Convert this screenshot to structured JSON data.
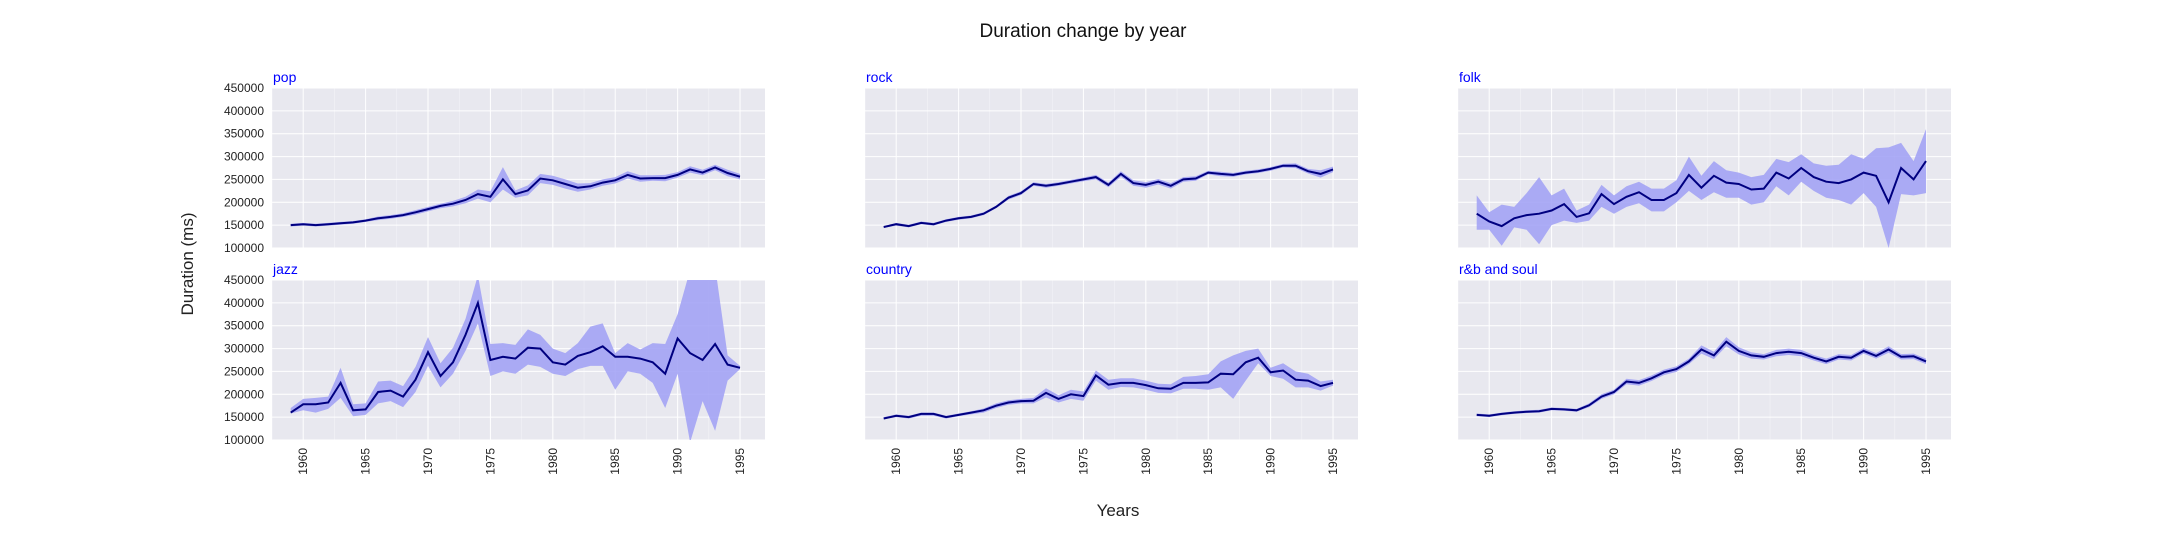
{
  "colors": {
    "background": "#ffffff",
    "panel_bg": "#e8e8ef",
    "grid": "#ffffff",
    "line": "#000080",
    "band": "#9f9ff5",
    "panel_title": "#0000ff",
    "text": "#222222"
  },
  "chart_data": {
    "type": "line",
    "title": "Duration change by year",
    "xlabel": "Years",
    "ylabel": "Duration (ms)",
    "ylim": [
      100000,
      450000
    ],
    "xlim": [
      1957.5,
      1997
    ],
    "yticks": [
      100000,
      150000,
      200000,
      250000,
      300000,
      350000,
      400000,
      450000
    ],
    "xticks": [
      1960,
      1965,
      1970,
      1975,
      1980,
      1985,
      1990,
      1995
    ],
    "grid": true,
    "legend": "none",
    "years": [
      1959,
      1960,
      1961,
      1962,
      1963,
      1964,
      1965,
      1966,
      1967,
      1968,
      1969,
      1970,
      1971,
      1972,
      1973,
      1974,
      1975,
      1976,
      1977,
      1978,
      1979,
      1980,
      1981,
      1982,
      1983,
      1984,
      1985,
      1986,
      1987,
      1988,
      1989,
      1990,
      1991,
      1992,
      1993,
      1994,
      1995
    ],
    "panels": [
      {
        "title": "pop",
        "values": [
          150000,
          152000,
          150000,
          152000,
          154000,
          156000,
          160000,
          165000,
          168000,
          172000,
          178000,
          185000,
          192000,
          197000,
          205000,
          218000,
          212000,
          250000,
          218000,
          226000,
          252000,
          248000,
          240000,
          232000,
          235000,
          243000,
          248000,
          260000,
          252000,
          253000,
          253000,
          260000,
          272000,
          265000,
          276000,
          264000,
          256000
        ],
        "lower": [
          147000,
          149000,
          147000,
          149000,
          151000,
          153000,
          157000,
          161000,
          164000,
          168000,
          173000,
          180000,
          187000,
          191000,
          198000,
          208000,
          200000,
          228000,
          210000,
          215000,
          242000,
          238000,
          230000,
          223000,
          228000,
          236000,
          241000,
          252000,
          245000,
          247000,
          246000,
          254000,
          265000,
          259000,
          270000,
          257000,
          250000
        ],
        "upper": [
          153000,
          155000,
          153000,
          155000,
          157000,
          159000,
          163000,
          169000,
          172000,
          176000,
          183000,
          190000,
          197000,
          203000,
          212000,
          228000,
          224000,
          277000,
          226000,
          237000,
          262000,
          258000,
          250000,
          241000,
          242000,
          250000,
          255000,
          268000,
          259000,
          259000,
          260000,
          266000,
          279000,
          271000,
          282000,
          271000,
          262000
        ]
      },
      {
        "title": "rock",
        "values": [
          146000,
          152000,
          148000,
          155000,
          152000,
          160000,
          165000,
          168000,
          175000,
          190000,
          210000,
          220000,
          240000,
          236000,
          240000,
          245000,
          250000,
          255000,
          238000,
          262000,
          242000,
          238000,
          245000,
          236000,
          250000,
          252000,
          265000,
          262000,
          260000,
          265000,
          268000,
          273000,
          280000,
          280000,
          268000,
          262000,
          272000
        ],
        "lower": [
          144000,
          149000,
          145000,
          152000,
          149000,
          157000,
          162000,
          165000,
          172000,
          187000,
          206000,
          216000,
          236000,
          232000,
          236000,
          241000,
          246000,
          250000,
          233000,
          256000,
          236000,
          232000,
          239000,
          230000,
          245000,
          247000,
          261000,
          257000,
          256000,
          261000,
          264000,
          269000,
          276000,
          275000,
          263000,
          254000,
          266000
        ],
        "upper": [
          148000,
          155000,
          151000,
          158000,
          155000,
          163000,
          168000,
          171000,
          178000,
          193000,
          214000,
          224000,
          244000,
          240000,
          244000,
          249000,
          254000,
          260000,
          243000,
          268000,
          248000,
          244000,
          251000,
          242000,
          255000,
          257000,
          269000,
          267000,
          264000,
          269000,
          272000,
          277000,
          284000,
          285000,
          273000,
          270000,
          278000
        ]
      },
      {
        "title": "folk",
        "values": [
          175000,
          158000,
          148000,
          165000,
          172000,
          175000,
          182000,
          196000,
          168000,
          176000,
          218000,
          196000,
          212000,
          222000,
          205000,
          205000,
          220000,
          260000,
          232000,
          258000,
          243000,
          240000,
          228000,
          230000,
          265000,
          252000,
          275000,
          255000,
          245000,
          242000,
          250000,
          265000,
          258000,
          200000,
          275000,
          250000,
          290000
        ],
        "lower": [
          140000,
          140000,
          105000,
          145000,
          140000,
          108000,
          150000,
          160000,
          155000,
          160000,
          190000,
          175000,
          190000,
          198000,
          180000,
          180000,
          200000,
          225000,
          205000,
          222000,
          210000,
          210000,
          195000,
          200000,
          235000,
          215000,
          245000,
          225000,
          210000,
          205000,
          195000,
          220000,
          190000,
          100000,
          218000,
          215000,
          220000
        ],
        "upper": [
          215000,
          178000,
          195000,
          190000,
          220000,
          255000,
          215000,
          230000,
          182000,
          195000,
          238000,
          215000,
          235000,
          245000,
          230000,
          230000,
          248000,
          300000,
          258000,
          290000,
          270000,
          265000,
          255000,
          260000,
          295000,
          288000,
          305000,
          285000,
          280000,
          282000,
          305000,
          295000,
          318000,
          320000,
          330000,
          290000,
          360000
        ]
      },
      {
        "title": "jazz",
        "values": [
          160000,
          178000,
          178000,
          182000,
          225000,
          165000,
          167000,
          205000,
          208000,
          195000,
          232000,
          292000,
          240000,
          270000,
          330000,
          400000,
          275000,
          282000,
          278000,
          302000,
          300000,
          270000,
          265000,
          284000,
          292000,
          305000,
          282000,
          282000,
          278000,
          270000,
          245000,
          322000,
          290000,
          275000,
          310000,
          265000,
          258000
        ],
        "lower": [
          158000,
          165000,
          160000,
          168000,
          192000,
          152000,
          155000,
          180000,
          185000,
          172000,
          205000,
          262000,
          215000,
          245000,
          295000,
          355000,
          240000,
          250000,
          245000,
          265000,
          260000,
          245000,
          240000,
          255000,
          262000,
          262000,
          210000,
          250000,
          245000,
          225000,
          170000,
          245000,
          95000,
          185000,
          120000,
          230000,
          255000
        ],
        "upper": [
          170000,
          190000,
          192000,
          195000,
          258000,
          178000,
          180000,
          228000,
          230000,
          218000,
          260000,
          325000,
          268000,
          302000,
          365000,
          460000,
          310000,
          312000,
          308000,
          342000,
          330000,
          300000,
          290000,
          312000,
          348000,
          355000,
          290000,
          312000,
          298000,
          312000,
          310000,
          375000,
          472000,
          455000,
          480000,
          285000,
          262000
        ]
      },
      {
        "title": "country",
        "values": [
          147000,
          153000,
          150000,
          157000,
          157000,
          150000,
          155000,
          160000,
          165000,
          175000,
          182000,
          185000,
          186000,
          203000,
          190000,
          200000,
          196000,
          241000,
          221000,
          225000,
          225000,
          220000,
          213000,
          212000,
          225000,
          225000,
          226000,
          245000,
          244000,
          270000,
          280000,
          248000,
          252000,
          232000,
          230000,
          218000,
          225000
        ],
        "lower": [
          145000,
          150000,
          147000,
          153000,
          153000,
          147000,
          152000,
          156000,
          160000,
          170000,
          177000,
          180000,
          180000,
          193000,
          182000,
          190000,
          186000,
          230000,
          210000,
          216000,
          215000,
          210000,
          203000,
          202000,
          212000,
          212000,
          210000,
          215000,
          190000,
          230000,
          268000,
          240000,
          234000,
          215000,
          215000,
          208000,
          219000
        ],
        "upper": [
          150000,
          156000,
          153000,
          160000,
          160000,
          153000,
          158000,
          163000,
          169000,
          180000,
          187000,
          190000,
          192000,
          213000,
          198000,
          210000,
          206000,
          252000,
          232000,
          235000,
          235000,
          230000,
          223000,
          222000,
          238000,
          240000,
          244000,
          272000,
          285000,
          295000,
          300000,
          258000,
          268000,
          250000,
          245000,
          228000,
          232000
        ]
      },
      {
        "title": "r&b and soul",
        "values": [
          155000,
          153000,
          157000,
          160000,
          162000,
          163000,
          168000,
          167000,
          165000,
          176000,
          195000,
          205000,
          228000,
          225000,
          235000,
          248000,
          255000,
          272000,
          298000,
          285000,
          315000,
          295000,
          285000,
          282000,
          290000,
          293000,
          290000,
          280000,
          272000,
          282000,
          280000,
          295000,
          284000,
          298000,
          282000,
          283000,
          272000
        ],
        "lower": [
          152000,
          150000,
          154000,
          157000,
          159000,
          160000,
          165000,
          164000,
          162000,
          172000,
          190000,
          200000,
          222000,
          219000,
          229000,
          242000,
          249000,
          266000,
          289000,
          277000,
          305000,
          287000,
          278000,
          276000,
          283000,
          286000,
          283000,
          274000,
          266000,
          276000,
          274000,
          289000,
          278000,
          291000,
          276000,
          277000,
          266000
        ],
        "upper": [
          158000,
          156000,
          160000,
          163000,
          165000,
          166000,
          171000,
          170000,
          168000,
          180000,
          200000,
          210000,
          234000,
          231000,
          241000,
          254000,
          261000,
          278000,
          307000,
          293000,
          325000,
          303000,
          292000,
          288000,
          297000,
          300000,
          297000,
          286000,
          278000,
          288000,
          286000,
          301000,
          290000,
          305000,
          288000,
          289000,
          278000
        ]
      }
    ]
  }
}
